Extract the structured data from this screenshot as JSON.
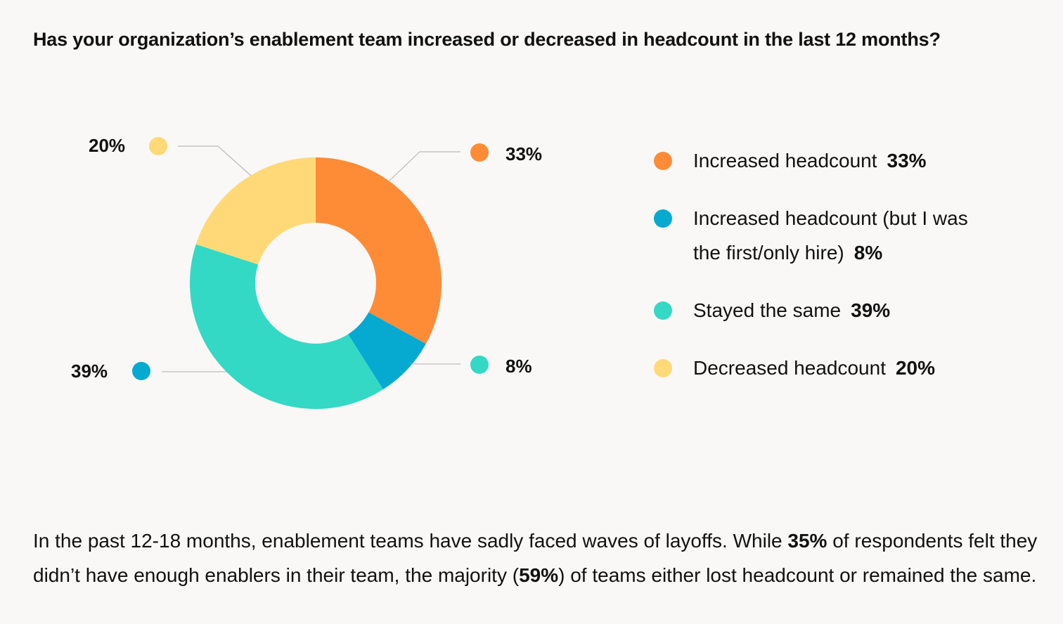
{
  "chart_data": {
    "type": "pie",
    "subtype": "donut",
    "title": "Has your organization’s enablement team increased or decreased in headcount in the last 12 months?",
    "categories": [
      "Increased headcount",
      "Increased headcount (but I was the first/only hire)",
      "Stayed the same",
      "Decreased headcount"
    ],
    "values": [
      33,
      8,
      39,
      20
    ],
    "value_labels": [
      "33%",
      "8%",
      "39%",
      "20%"
    ],
    "colors": [
      "#fe8c37",
      "#06a9d0",
      "#33d9c5",
      "#ffd978"
    ],
    "legend_position": "right"
  },
  "legend": [
    {
      "label": "Increased headcount",
      "value": "33%"
    },
    {
      "label": "Increased headcount (but I was the first/only hire)",
      "value": "8%"
    },
    {
      "label": "Stayed the same",
      "value": "39%"
    },
    {
      "label": "Decreased headcount",
      "value": "20%"
    }
  ],
  "paragraph": {
    "p1": "In the past 12-18 months, enablement teams have sadly faced waves of layoffs. While ",
    "b1": "35%",
    "p2": " of respondents felt they didn’t have enough enablers in their team, the majority (",
    "b2": "59%",
    "p3": ") of teams either lost headcount or remained the same."
  }
}
